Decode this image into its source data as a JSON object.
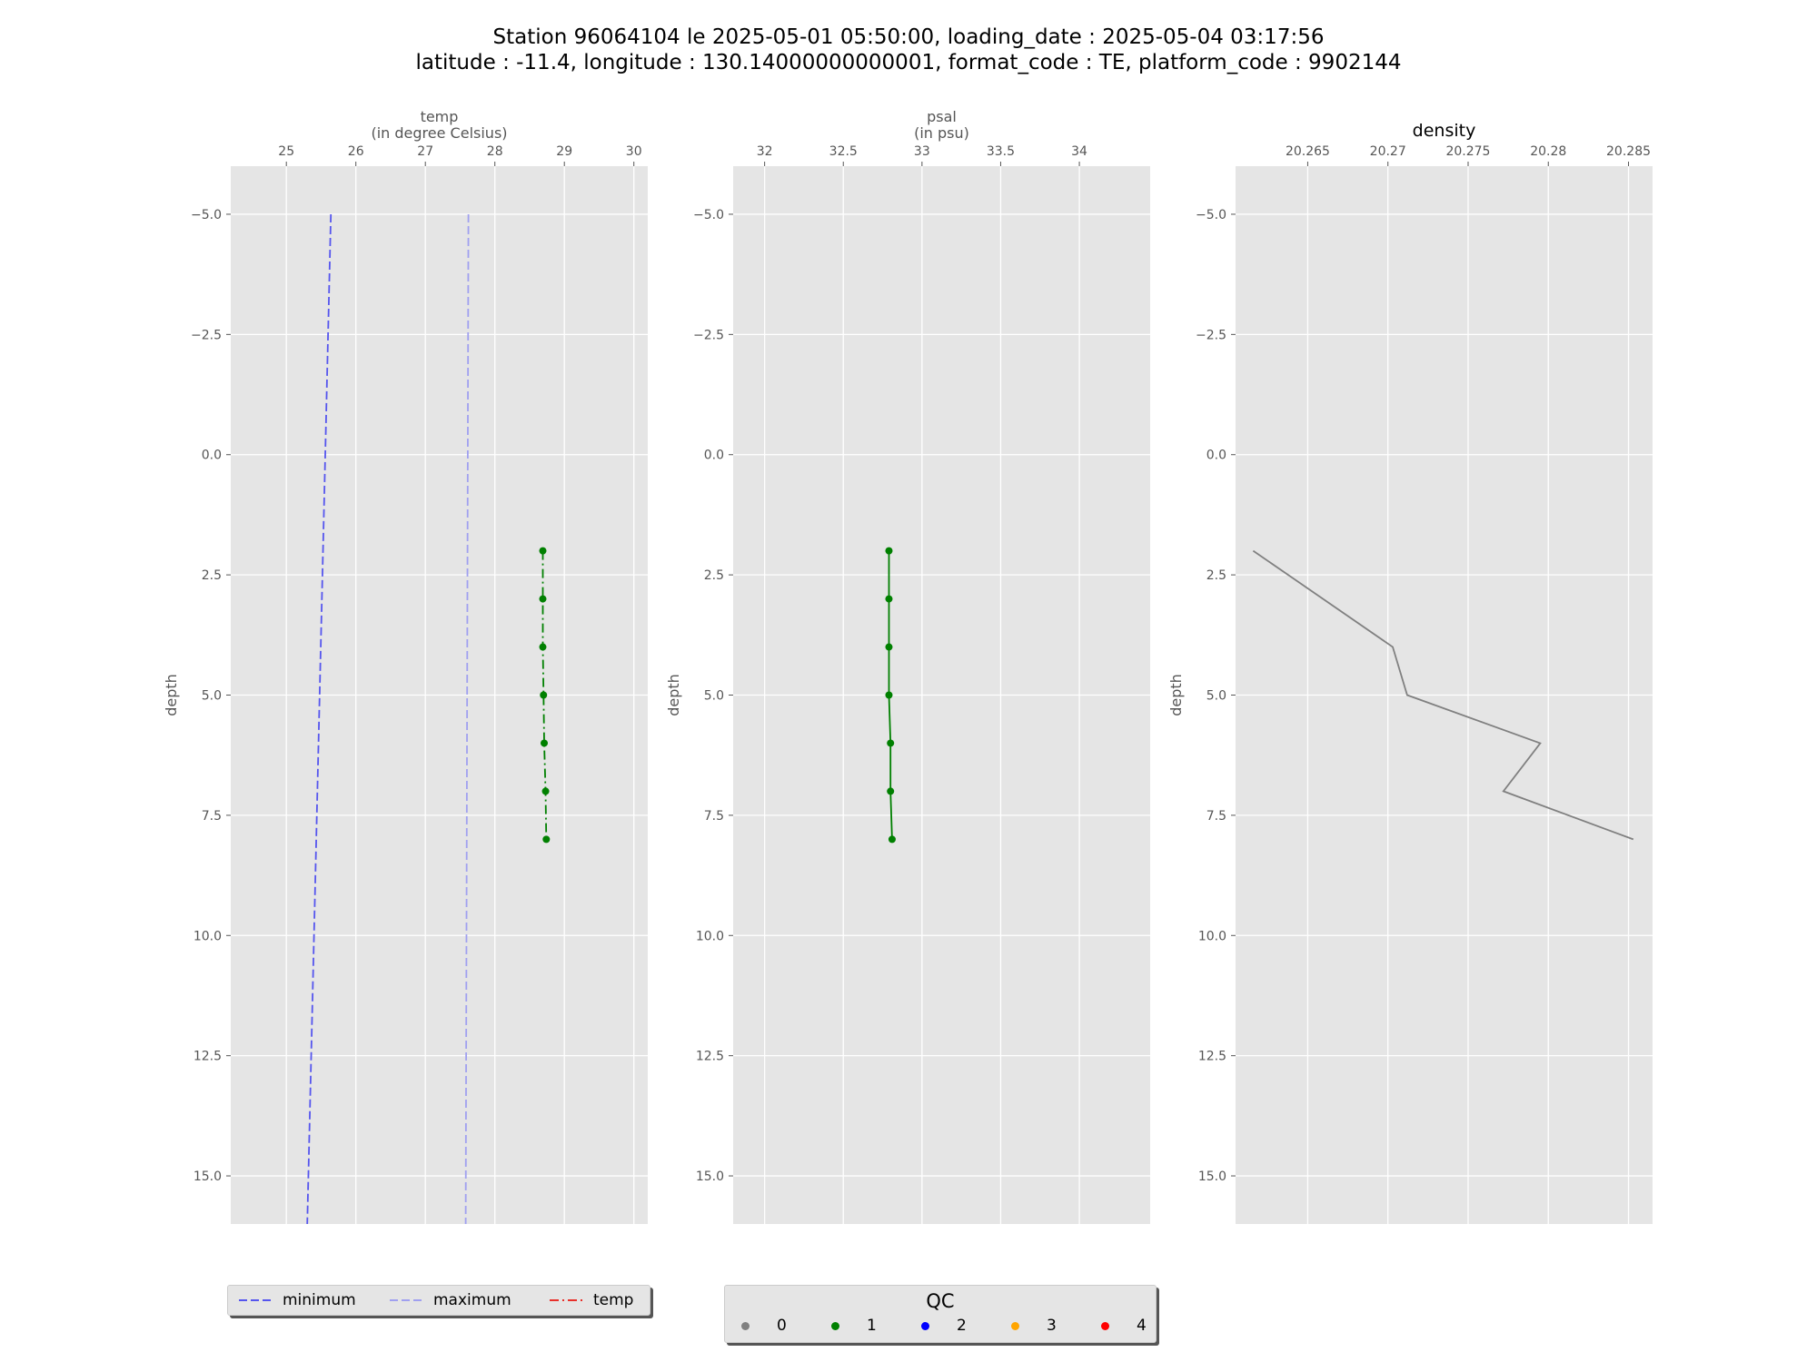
{
  "figure": {
    "title_line1": "Station 96064104 le 2025-05-01 05:50:00, loading_date : 2025-05-04 03:17:56",
    "title_line2": "latitude : -11.4, longitude : 130.14000000000001, format_code : TE, platform_code : 9902144"
  },
  "chart_data": [
    {
      "type": "line",
      "title": "",
      "xlabel": "temp\n(in degree Celsius)",
      "ylabel": "depth",
      "xlim": [
        24.2,
        30.2
      ],
      "ylim": [
        16,
        -6
      ],
      "y_inverted": true,
      "grid": true,
      "xaxis_position": "top",
      "xticks": [
        25,
        26,
        27,
        28,
        29,
        30
      ],
      "yticks": [
        -5.0,
        -2.5,
        0.0,
        2.5,
        5.0,
        7.5,
        10.0,
        12.5,
        15.0
      ],
      "series": [
        {
          "name": "minimum",
          "color": "#5555ee",
          "style": "dashed",
          "x": [
            25.64,
            25.3
          ],
          "y": [
            -5,
            16
          ]
        },
        {
          "name": "maximum",
          "color": "#a0a0f0",
          "style": "dashed",
          "x": [
            27.62,
            27.58
          ],
          "y": [
            -5,
            16
          ]
        },
        {
          "name": "temp",
          "color": "#008000",
          "style": "dashdot",
          "marker": "circle",
          "x": [
            28.69,
            28.69,
            28.69,
            28.7,
            28.71,
            28.73,
            28.74
          ],
          "y": [
            2,
            3,
            4,
            5,
            6,
            7,
            8
          ],
          "qc": [
            1,
            1,
            1,
            1,
            1,
            1,
            1
          ]
        }
      ]
    },
    {
      "type": "line",
      "title": "",
      "xlabel": "psal\n(in psu)",
      "ylabel": "depth",
      "xlim": [
        31.8,
        34.45
      ],
      "ylim": [
        16,
        -6
      ],
      "y_inverted": true,
      "grid": true,
      "xaxis_position": "top",
      "xticks": [
        32.0,
        32.5,
        33.0,
        33.5,
        34.0
      ],
      "yticks": [
        -5.0,
        -2.5,
        0.0,
        2.5,
        5.0,
        7.5,
        10.0,
        12.5,
        15.0
      ],
      "series": [
        {
          "name": "psal",
          "color": "#008000",
          "style": "solid",
          "marker": "circle",
          "x": [
            32.79,
            32.79,
            32.79,
            32.79,
            32.8,
            32.8,
            32.81
          ],
          "y": [
            2,
            3,
            4,
            5,
            6,
            7,
            8
          ],
          "qc": [
            1,
            1,
            1,
            1,
            1,
            1,
            1
          ]
        }
      ]
    },
    {
      "type": "line",
      "title": "density",
      "xlabel": "",
      "ylabel": "depth",
      "xlim": [
        20.2605,
        20.2865
      ],
      "ylim": [
        16,
        -6
      ],
      "y_inverted": true,
      "grid": true,
      "xaxis_position": "top",
      "xticks": [
        20.265,
        20.27,
        20.275,
        20.28,
        20.285
      ],
      "yticks": [
        -5.0,
        -2.5,
        0.0,
        2.5,
        5.0,
        7.5,
        10.0,
        12.5,
        15.0
      ],
      "series": [
        {
          "name": "density",
          "color": "#808080",
          "style": "solid",
          "x": [
            20.2616,
            20.2703,
            20.2712,
            20.2795,
            20.2772,
            20.2853
          ],
          "y": [
            2,
            4,
            5,
            6,
            7,
            8
          ]
        }
      ]
    }
  ],
  "legend_lines": {
    "placement": "bottom-left",
    "entries": [
      {
        "label": "minimum",
        "color": "#5555ee",
        "style": "dashed"
      },
      {
        "label": "maximum",
        "color": "#a0a0f0",
        "style": "dashed"
      },
      {
        "label": "temp",
        "color": "#e8302a",
        "style": "dashdot"
      }
    ]
  },
  "legend_qc": {
    "title": "QC",
    "placement": "bottom-center",
    "entries": [
      {
        "label": "0",
        "color": "#808080"
      },
      {
        "label": "1",
        "color": "#008000"
      },
      {
        "label": "2",
        "color": "#0000ff"
      },
      {
        "label": "3",
        "color": "#ffa500"
      },
      {
        "label": "4",
        "color": "#ff0000"
      }
    ]
  }
}
